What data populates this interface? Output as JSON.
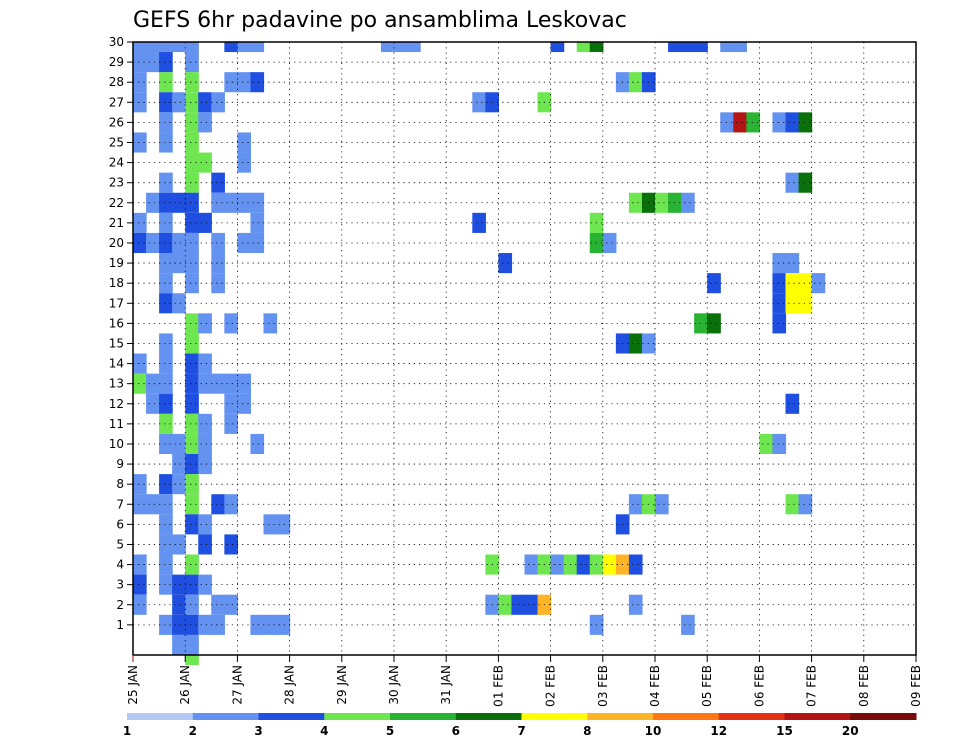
{
  "chart_data": {
    "type": "heatmap",
    "title": "GEFS 6hr padavine po ansamblima Leskovac",
    "xlabel": "",
    "ylabel": "",
    "x_ticks": [
      "25 JAN",
      "26 JAN",
      "27 JAN",
      "28 JAN",
      "29 JAN",
      "30 JAN",
      "31 JAN",
      "01 FEB",
      "02 FEB",
      "03 FEB",
      "04 FEB",
      "05 FEB",
      "06 FEB",
      "07 FEB",
      "08 FEB",
      "09 FEB"
    ],
    "y_ticks": [
      1,
      2,
      3,
      4,
      5,
      6,
      7,
      8,
      9,
      10,
      11,
      12,
      13,
      14,
      15,
      16,
      17,
      18,
      19,
      20,
      21,
      22,
      23,
      24,
      25,
      26,
      27,
      28,
      29,
      30
    ],
    "time_step_hours": 6,
    "start_time": "25 JAN 00Z",
    "ylim": [
      0,
      30
    ],
    "grid": true,
    "colorbar": {
      "placement": "bottom",
      "boundaries": [
        "1",
        "2",
        "3",
        "4",
        "5",
        "6",
        "7",
        "8",
        "10",
        "12",
        "15",
        "20"
      ],
      "colors": [
        "#b4c8f5",
        "#6492f0",
        "#1e4fe0",
        "#6ee650",
        "#28b432",
        "#0a700a",
        "#ffff00",
        "#ffb428",
        "#ff7814",
        "#e63214",
        "#b41414",
        "#780a0a"
      ]
    },
    "cells": [
      [
        0,
        30,
        1
      ],
      [
        1,
        30,
        1
      ],
      [
        2,
        30,
        1
      ],
      [
        3,
        30,
        1
      ],
      [
        4,
        30,
        1
      ],
      [
        7,
        30,
        2
      ],
      [
        8,
        30,
        1
      ],
      [
        9,
        30,
        1
      ],
      [
        19,
        30,
        1
      ],
      [
        20,
        30,
        1
      ],
      [
        21,
        30,
        1
      ],
      [
        32,
        30,
        2
      ],
      [
        34,
        30,
        3
      ],
      [
        35,
        30,
        5
      ],
      [
        41,
        30,
        2
      ],
      [
        42,
        30,
        2
      ],
      [
        43,
        30,
        2
      ],
      [
        45,
        30,
        1
      ],
      [
        46,
        30,
        1
      ],
      [
        0,
        29,
        1
      ],
      [
        1,
        29,
        1
      ],
      [
        2,
        29,
        2
      ],
      [
        4,
        29,
        1
      ],
      [
        0,
        28,
        1
      ],
      [
        2,
        28,
        3
      ],
      [
        4,
        28,
        3
      ],
      [
        7,
        28,
        1
      ],
      [
        8,
        28,
        1
      ],
      [
        9,
        28,
        2
      ],
      [
        37,
        28,
        1
      ],
      [
        38,
        28,
        3
      ],
      [
        39,
        28,
        2
      ],
      [
        0,
        27,
        1
      ],
      [
        2,
        27,
        2
      ],
      [
        3,
        27,
        1
      ],
      [
        4,
        27,
        3
      ],
      [
        5,
        27,
        2
      ],
      [
        6,
        27,
        1
      ],
      [
        26,
        27,
        1
      ],
      [
        27,
        27,
        2
      ],
      [
        31,
        27,
        3
      ],
      [
        2,
        26,
        1
      ],
      [
        4,
        26,
        3
      ],
      [
        5,
        26,
        1
      ],
      [
        45,
        26,
        1
      ],
      [
        46,
        26,
        10
      ],
      [
        47,
        26,
        4
      ],
      [
        49,
        26,
        1
      ],
      [
        50,
        26,
        2
      ],
      [
        51,
        26,
        5
      ],
      [
        0,
        25,
        1
      ],
      [
        2,
        25,
        1
      ],
      [
        4,
        25,
        3
      ],
      [
        8,
        25,
        1
      ],
      [
        4,
        24,
        3
      ],
      [
        5,
        24,
        3
      ],
      [
        8,
        24,
        1
      ],
      [
        2,
        23,
        1
      ],
      [
        4,
        23,
        3
      ],
      [
        6,
        23,
        2
      ],
      [
        50,
        23,
        1
      ],
      [
        51,
        23,
        5
      ],
      [
        1,
        22,
        1
      ],
      [
        2,
        22,
        2
      ],
      [
        3,
        22,
        2
      ],
      [
        4,
        22,
        2
      ],
      [
        6,
        22,
        1
      ],
      [
        7,
        22,
        1
      ],
      [
        8,
        22,
        1
      ],
      [
        9,
        22,
        1
      ],
      [
        38,
        22,
        3
      ],
      [
        39,
        22,
        5
      ],
      [
        40,
        22,
        3
      ],
      [
        41,
        22,
        4
      ],
      [
        42,
        22,
        1
      ],
      [
        0,
        21,
        1
      ],
      [
        2,
        21,
        1
      ],
      [
        4,
        21,
        2
      ],
      [
        5,
        21,
        2
      ],
      [
        9,
        21,
        1
      ],
      [
        26,
        21,
        2
      ],
      [
        35,
        21,
        3
      ],
      [
        0,
        20,
        2
      ],
      [
        1,
        20,
        1
      ],
      [
        2,
        20,
        2
      ],
      [
        3,
        20,
        1
      ],
      [
        4,
        20,
        1
      ],
      [
        6,
        20,
        1
      ],
      [
        8,
        20,
        1
      ],
      [
        9,
        20,
        1
      ],
      [
        35,
        20,
        4
      ],
      [
        36,
        20,
        1
      ],
      [
        2,
        19,
        1
      ],
      [
        3,
        19,
        1
      ],
      [
        4,
        19,
        1
      ],
      [
        6,
        19,
        1
      ],
      [
        28,
        19,
        2
      ],
      [
        49,
        19,
        1
      ],
      [
        50,
        19,
        1
      ],
      [
        2,
        18,
        1
      ],
      [
        4,
        18,
        1
      ],
      [
        6,
        18,
        1
      ],
      [
        44,
        18,
        2
      ],
      [
        49,
        18,
        2
      ],
      [
        50,
        18,
        6
      ],
      [
        51,
        18,
        6
      ],
      [
        52,
        18,
        1
      ],
      [
        2,
        17,
        2
      ],
      [
        3,
        17,
        1
      ],
      [
        49,
        17,
        2
      ],
      [
        50,
        17,
        6
      ],
      [
        51,
        17,
        6
      ],
      [
        4,
        16,
        3
      ],
      [
        5,
        16,
        1
      ],
      [
        7,
        16,
        1
      ],
      [
        10,
        16,
        1
      ],
      [
        43,
        16,
        4
      ],
      [
        44,
        16,
        5
      ],
      [
        49,
        16,
        2
      ],
      [
        2,
        15,
        1
      ],
      [
        4,
        15,
        3
      ],
      [
        37,
        15,
        2
      ],
      [
        38,
        15,
        5
      ],
      [
        39,
        15,
        1
      ],
      [
        0,
        14,
        1
      ],
      [
        2,
        14,
        1
      ],
      [
        4,
        14,
        2
      ],
      [
        5,
        14,
        1
      ],
      [
        0,
        13,
        3
      ],
      [
        1,
        13,
        1
      ],
      [
        2,
        13,
        1
      ],
      [
        4,
        13,
        2
      ],
      [
        5,
        13,
        1
      ],
      [
        6,
        13,
        1
      ],
      [
        7,
        13,
        1
      ],
      [
        8,
        13,
        1
      ],
      [
        1,
        12,
        1
      ],
      [
        2,
        12,
        2
      ],
      [
        4,
        12,
        2
      ],
      [
        7,
        12,
        1
      ],
      [
        8,
        12,
        1
      ],
      [
        50,
        12,
        2
      ],
      [
        2,
        11,
        3
      ],
      [
        4,
        11,
        3
      ],
      [
        5,
        11,
        1
      ],
      [
        7,
        11,
        1
      ],
      [
        2,
        10,
        1
      ],
      [
        3,
        10,
        1
      ],
      [
        4,
        10,
        3
      ],
      [
        5,
        10,
        1
      ],
      [
        9,
        10,
        1
      ],
      [
        48,
        10,
        3
      ],
      [
        49,
        10,
        1
      ],
      [
        3,
        9,
        1
      ],
      [
        4,
        9,
        2
      ],
      [
        5,
        9,
        1
      ],
      [
        0,
        8,
        1
      ],
      [
        2,
        8,
        2
      ],
      [
        3,
        8,
        1
      ],
      [
        4,
        8,
        3
      ],
      [
        0,
        7,
        1
      ],
      [
        1,
        7,
        1
      ],
      [
        2,
        7,
        1
      ],
      [
        4,
        7,
        3
      ],
      [
        6,
        7,
        2
      ],
      [
        7,
        7,
        1
      ],
      [
        38,
        7,
        1
      ],
      [
        39,
        7,
        3
      ],
      [
        40,
        7,
        1
      ],
      [
        50,
        7,
        3
      ],
      [
        51,
        7,
        1
      ],
      [
        2,
        6,
        1
      ],
      [
        4,
        6,
        2
      ],
      [
        5,
        6,
        1
      ],
      [
        10,
        6,
        1
      ],
      [
        11,
        6,
        1
      ],
      [
        37,
        6,
        2
      ],
      [
        2,
        5,
        1
      ],
      [
        3,
        5,
        1
      ],
      [
        5,
        5,
        2
      ],
      [
        7,
        5,
        2
      ],
      [
        0,
        4,
        1
      ],
      [
        2,
        4,
        1
      ],
      [
        4,
        4,
        3
      ],
      [
        27,
        4,
        3
      ],
      [
        30,
        4,
        1
      ],
      [
        31,
        4,
        3
      ],
      [
        32,
        4,
        1
      ],
      [
        33,
        4,
        3
      ],
      [
        34,
        4,
        2
      ],
      [
        35,
        4,
        3
      ],
      [
        36,
        4,
        6
      ],
      [
        37,
        4,
        7
      ],
      [
        38,
        4,
        2
      ],
      [
        0,
        3,
        2
      ],
      [
        2,
        3,
        1
      ],
      [
        3,
        3,
        2
      ],
      [
        4,
        3,
        2
      ],
      [
        5,
        3,
        1
      ],
      [
        0,
        2,
        1
      ],
      [
        3,
        2,
        2
      ],
      [
        4,
        2,
        1
      ],
      [
        6,
        2,
        1
      ],
      [
        7,
        2,
        1
      ],
      [
        27,
        2,
        1
      ],
      [
        28,
        2,
        3
      ],
      [
        29,
        2,
        2
      ],
      [
        30,
        2,
        2
      ],
      [
        31,
        2,
        7
      ],
      [
        38,
        2,
        1
      ],
      [
        2,
        1,
        1
      ],
      [
        3,
        1,
        2
      ],
      [
        4,
        1,
        2
      ],
      [
        5,
        1,
        1
      ],
      [
        6,
        1,
        1
      ],
      [
        9,
        1,
        1
      ],
      [
        10,
        1,
        1
      ],
      [
        11,
        1,
        1
      ],
      [
        35,
        1,
        1
      ],
      [
        42,
        1,
        1
      ],
      [
        3,
        0,
        1
      ],
      [
        4,
        0,
        1
      ],
      [
        4,
        -1,
        3
      ]
    ]
  }
}
